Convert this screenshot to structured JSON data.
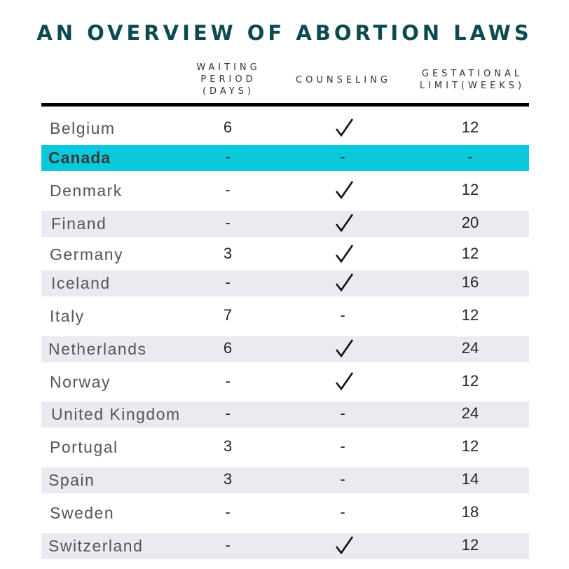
{
  "chart_data": {
    "type": "table",
    "title": "AN OVERVIEW OF ABORTION LAWS",
    "columns": [
      "WAITING PERIOD (DAYS)",
      "COUNSELING",
      "GESTATIONAL LIMIT(WEEKS)"
    ],
    "column_header_lines": {
      "waiting": [
        "WAITING",
        "PERIOD",
        "(DAYS)"
      ],
      "counseling": [
        "COUNSELING"
      ],
      "gestational": [
        "GESTATIONAL",
        "LIMIT(WEEKS)"
      ]
    },
    "highlight_color": "#0ac8dc",
    "rows": [
      {
        "country": "Belgium",
        "waiting": "6",
        "counseling": true,
        "limit": "12"
      },
      {
        "country": "Canada",
        "waiting": "-",
        "counseling": "-",
        "limit": "-"
      },
      {
        "country": "Denmark",
        "waiting": "-",
        "counseling": true,
        "limit": "12"
      },
      {
        "country": "Finand",
        "waiting": "-",
        "counseling": true,
        "limit": "20"
      },
      {
        "country": "Germany",
        "waiting": "3",
        "counseling": true,
        "limit": "12"
      },
      {
        "country": "Iceland",
        "waiting": "-",
        "counseling": true,
        "limit": "16"
      },
      {
        "country": "Italy",
        "waiting": "7",
        "counseling": "-",
        "limit": "12"
      },
      {
        "country": "Netherlands",
        "waiting": "6",
        "counseling": true,
        "limit": "24"
      },
      {
        "country": "Norway",
        "waiting": "-",
        "counseling": true,
        "limit": "12"
      },
      {
        "country": "United Kingdom",
        "waiting": "-",
        "counseling": "-",
        "limit": "24"
      },
      {
        "country": "Portugal",
        "waiting": "3",
        "counseling": "-",
        "limit": "12"
      },
      {
        "country": "Spain",
        "waiting": "3",
        "counseling": "-",
        "limit": "14"
      },
      {
        "country": "Sweden",
        "waiting": "-",
        "counseling": "-",
        "limit": "18"
      },
      {
        "country": "Switzerland",
        "waiting": "-",
        "counseling": true,
        "limit": "12"
      }
    ]
  }
}
